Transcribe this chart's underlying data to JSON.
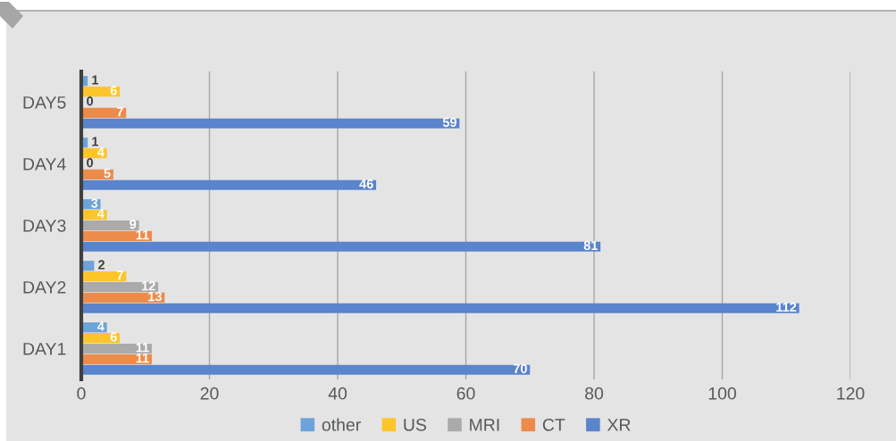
{
  "chart_data": {
    "type": "bar",
    "orientation": "horizontal",
    "categories": [
      "DAY5",
      "DAY4",
      "DAY3",
      "DAY2",
      "DAY1"
    ],
    "series": [
      {
        "name": "other",
        "color": "#6ca3d9",
        "values": [
          1,
          1,
          3,
          2,
          4
        ]
      },
      {
        "name": "US",
        "color": "#fdc52a",
        "values": [
          6,
          4,
          4,
          7,
          6
        ]
      },
      {
        "name": "MRI",
        "color": "#aaaaaa",
        "values": [
          0,
          0,
          9,
          12,
          11
        ]
      },
      {
        "name": "CT",
        "color": "#ed8b4b",
        "values": [
          7,
          5,
          11,
          13,
          11
        ]
      },
      {
        "name": "XR",
        "color": "#5a84cc",
        "values": [
          59,
          46,
          81,
          112,
          70
        ]
      }
    ],
    "xlim": [
      0,
      120
    ],
    "xticks": [
      0,
      20,
      40,
      60,
      80,
      100,
      120
    ],
    "grid": "x",
    "legend": "bottom",
    "data_labels": true
  }
}
